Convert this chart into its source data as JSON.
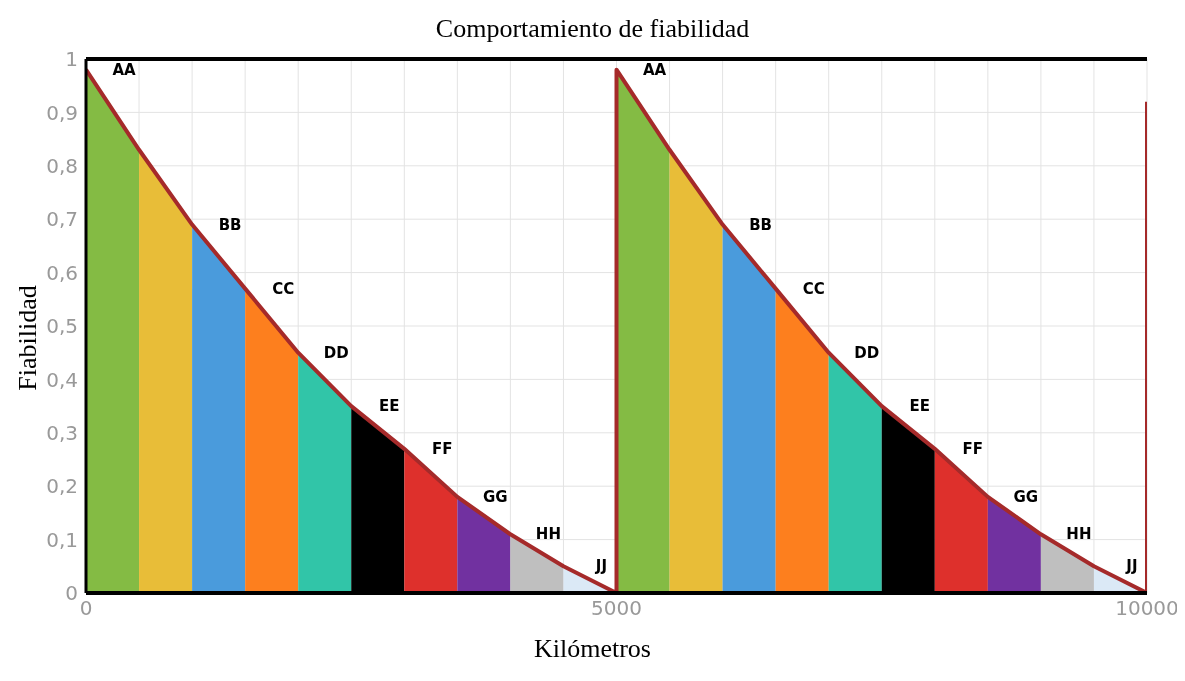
{
  "chart_data": {
    "type": "area",
    "title": "Comportamiento de fiabilidad",
    "xlabel": "Kilómetros",
    "ylabel": "Fiabilidad",
    "xlim": [
      0,
      10000
    ],
    "ylim": [
      0,
      1
    ],
    "xticks": [
      0,
      {
        "value": 500,
        "label": null
      },
      {
        "value": 1000,
        "label": null
      },
      {
        "value": 1500,
        "label": null
      },
      {
        "value": 2000,
        "label": null
      },
      {
        "value": 2500,
        "label": null
      },
      {
        "value": 3000,
        "label": null
      },
      {
        "value": 3500,
        "label": null
      },
      {
        "value": 4000,
        "label": null
      },
      {
        "value": 4500,
        "label": null
      },
      5000,
      {
        "value": 5500,
        "label": null
      },
      {
        "value": 6000,
        "label": null
      },
      {
        "value": 6500,
        "label": null
      },
      {
        "value": 7000,
        "label": null
      },
      {
        "value": 7500,
        "label": null
      },
      {
        "value": 8000,
        "label": null
      },
      {
        "value": 8500,
        "label": null
      },
      {
        "value": 9000,
        "label": null
      },
      {
        "value": 9500,
        "label": null
      },
      10000
    ],
    "yticks": [
      0,
      {
        "value": 0.1,
        "label": "0,1"
      },
      {
        "value": 0.2,
        "label": "0,2"
      },
      {
        "value": 0.3,
        "label": "0,3"
      },
      {
        "value": 0.4,
        "label": "0,4"
      },
      {
        "value": 0.5,
        "label": "0,5"
      },
      {
        "value": 0.6,
        "label": "0,6"
      },
      {
        "value": 0.7,
        "label": "0,7"
      },
      {
        "value": 0.8,
        "label": "0,8"
      },
      {
        "value": 0.9,
        "label": "0,9"
      },
      1
    ],
    "grid": true,
    "series": [
      {
        "color": "#84bb44",
        "x": [
          0,
          500
        ],
        "values": [
          0.98,
          0.83
        ]
      },
      {
        "color": "#e8bd38",
        "x": [
          500,
          1000
        ],
        "values": [
          0.83,
          0.69
        ]
      },
      {
        "color": "#4a9bdc",
        "x": [
          1000,
          1500
        ],
        "values": [
          0.69,
          0.57
        ]
      },
      {
        "color": "#fd7f1e",
        "x": [
          1500,
          2000
        ],
        "values": [
          0.57,
          0.45
        ]
      },
      {
        "color": "#31c5a8",
        "x": [
          2000,
          2500
        ],
        "values": [
          0.45,
          0.35
        ]
      },
      {
        "color": "#000000",
        "x": [
          2500,
          3000
        ],
        "values": [
          0.35,
          0.27
        ]
      },
      {
        "color": "#de302c",
        "x": [
          3000,
          3500
        ],
        "values": [
          0.27,
          0.18
        ]
      },
      {
        "color": "#7131a0",
        "x": [
          3500,
          4000
        ],
        "values": [
          0.18,
          0.11
        ]
      },
      {
        "color": "#bfbfbf",
        "x": [
          4000,
          4500
        ],
        "values": [
          0.11,
          0.05
        ]
      },
      {
        "color": "#dbe9f6",
        "x": [
          4500,
          5000
        ],
        "values": [
          0.05,
          0
        ]
      },
      {
        "color": "#84bb44",
        "x": [
          5000,
          5500
        ],
        "values": [
          0.98,
          0.83
        ]
      },
      {
        "color": "#e8bd38",
        "x": [
          5500,
          6000
        ],
        "values": [
          0.83,
          0.69
        ]
      },
      {
        "color": "#4a9bdc",
        "x": [
          6000,
          6500
        ],
        "values": [
          0.69,
          0.57
        ]
      },
      {
        "color": "#fd7f1e",
        "x": [
          6500,
          7000
        ],
        "values": [
          0.57,
          0.45
        ]
      },
      {
        "color": "#31c5a8",
        "x": [
          7000,
          7500
        ],
        "values": [
          0.45,
          0.35
        ]
      },
      {
        "color": "#000000",
        "x": [
          7500,
          8000
        ],
        "values": [
          0.35,
          0.27
        ]
      },
      {
        "color": "#de302c",
        "x": [
          8000,
          8500
        ],
        "values": [
          0.27,
          0.18
        ]
      },
      {
        "color": "#7131a0",
        "x": [
          8500,
          9000
        ],
        "values": [
          0.18,
          0.11
        ]
      },
      {
        "color": "#bfbfbf",
        "x": [
          9000,
          9500
        ],
        "values": [
          0.11,
          0.05
        ]
      },
      {
        "color": "#dbe9f6",
        "x": [
          9500,
          10000
        ],
        "values": [
          0.05,
          0
        ]
      },
      {
        "type": "line",
        "color": "#a52a2a",
        "x": [
          0,
          500,
          1000,
          1500,
          2000,
          2500,
          3000,
          3500,
          4000,
          4500,
          5000,
          5000,
          5500,
          6000,
          6500,
          7000,
          7500,
          8000,
          8500,
          9000,
          9500,
          10000,
          10000
        ],
        "values": [
          0.98,
          0.83,
          0.69,
          0.57,
          0.45,
          0.35,
          0.27,
          0.18,
          0.11,
          0.05,
          0,
          0.98,
          0.83,
          0.69,
          0.57,
          0.45,
          0.35,
          0.27,
          0.18,
          0.11,
          0.05,
          0,
          0.92
        ]
      }
    ],
    "annotations": [
      {
        "text": "AA",
        "x": 0,
        "y": 0.98
      },
      {
        "text": "BB",
        "x": 1000,
        "y": 0.69
      },
      {
        "text": "CC",
        "x": 1500,
        "y": 0.57
      },
      {
        "text": "DD",
        "x": 2000,
        "y": 0.45
      },
      {
        "text": "EE",
        "x": 2500,
        "y": 0.35
      },
      {
        "text": "FF",
        "x": 3000,
        "y": 0.27
      },
      {
        "text": "GG",
        "x": 3500,
        "y": 0.18
      },
      {
        "text": "HH",
        "x": 4000,
        "y": 0.11
      },
      {
        "text": "JJ",
        "x": 4500,
        "y": 0.05
      },
      {
        "text": "AA",
        "x": 5000,
        "y": 0.98
      },
      {
        "text": "BB",
        "x": 6000,
        "y": 0.69
      },
      {
        "text": "CC",
        "x": 6500,
        "y": 0.57
      },
      {
        "text": "DD",
        "x": 7000,
        "y": 0.45
      },
      {
        "text": "EE",
        "x": 7500,
        "y": 0.35
      },
      {
        "text": "FF",
        "x": 8000,
        "y": 0.27
      },
      {
        "text": "GG",
        "x": 8500,
        "y": 0.18
      },
      {
        "text": "HH",
        "x": 9000,
        "y": 0.11
      },
      {
        "text": "JJ",
        "x": 9500,
        "y": 0.05
      }
    ]
  }
}
